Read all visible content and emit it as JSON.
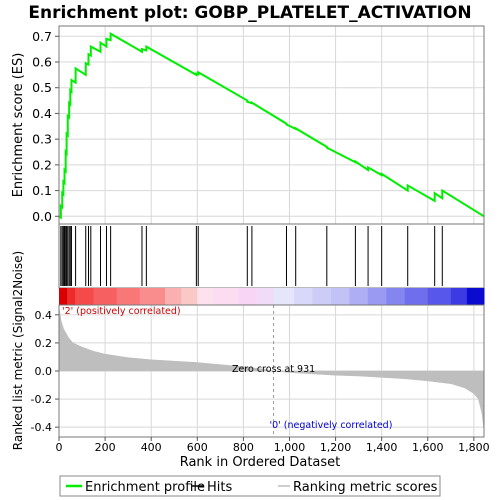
{
  "chart_data": {
    "type": "line",
    "title": "Enrichment plot: GOBP_PLATELET_ACTIVATION",
    "xlabel": "Rank in Ordered Dataset",
    "es_ylabel": "Enrichment score (ES)",
    "metric_ylabel": "Ranked list metric (Signal2Noise)",
    "xlim": [
      0,
      1844
    ],
    "es_ylim": [
      -0.03,
      0.74
    ],
    "metric_ylim": [
      -0.47,
      0.47
    ],
    "x_ticks": [
      "0",
      "200",
      "400",
      "600",
      "800",
      "1,000",
      "1,200",
      "1,400",
      "1,600",
      "1,800"
    ],
    "x_tick_values": [
      0,
      200,
      400,
      600,
      800,
      1000,
      1200,
      1400,
      1600,
      1800
    ],
    "es_ticks": [
      "0.0",
      "0.1",
      "0.2",
      "0.3",
      "0.4",
      "0.5",
      "0.6",
      "0.7"
    ],
    "es_tick_values": [
      0,
      0.1,
      0.2,
      0.3,
      0.4,
      0.5,
      0.6,
      0.7
    ],
    "metric_ticks": [
      "-0.4",
      "-0.2",
      "0.0",
      "0.2",
      "0.4"
    ],
    "metric_tick_values": [
      -0.4,
      -0.2,
      0,
      0.2,
      0.4
    ],
    "grid": true,
    "legend_position": "bottom",
    "hits": [
      8,
      14,
      19,
      24,
      29,
      33,
      38,
      44,
      49,
      54,
      72,
      116,
      128,
      138,
      180,
      206,
      224,
      360,
      379,
      596,
      604,
      817,
      837,
      987,
      1027,
      1162,
      1286,
      1341,
      1400,
      1513,
      1630,
      1663
    ],
    "enrichment_profile": {
      "x": [
        0,
        8,
        8,
        14,
        14,
        19,
        19,
        24,
        24,
        29,
        29,
        33,
        33,
        38,
        38,
        44,
        44,
        49,
        49,
        54,
        54,
        72,
        72,
        116,
        116,
        128,
        128,
        138,
        138,
        180,
        180,
        206,
        206,
        224,
        224,
        360,
        360,
        379,
        379,
        596,
        596,
        604,
        604,
        817,
        817,
        837,
        837,
        987,
        987,
        1027,
        1027,
        1162,
        1162,
        1286,
        1286,
        1341,
        1341,
        1400,
        1400,
        1513,
        1513,
        1630,
        1630,
        1663,
        1663,
        1844
      ],
      "y": [
        0.0,
        -0.005,
        0.04,
        0.035,
        0.09,
        0.085,
        0.135,
        0.13,
        0.18,
        0.175,
        0.25,
        0.245,
        0.32,
        0.315,
        0.39,
        0.385,
        0.44,
        0.435,
        0.49,
        0.485,
        0.53,
        0.52,
        0.575,
        0.55,
        0.595,
        0.59,
        0.63,
        0.625,
        0.66,
        0.64,
        0.675,
        0.66,
        0.69,
        0.685,
        0.71,
        0.64,
        0.65,
        0.645,
        0.66,
        0.55,
        0.555,
        0.552,
        0.56,
        0.45,
        0.445,
        0.44,
        0.442,
        0.36,
        0.357,
        0.34,
        0.342,
        0.27,
        0.267,
        0.21,
        0.213,
        0.18,
        0.19,
        0.16,
        0.165,
        0.1,
        0.12,
        0.06,
        0.09,
        0.07,
        0.1,
        0.0
      ]
    },
    "metric_curve": {
      "x": [
        0,
        10,
        20,
        40,
        60,
        100,
        150,
        200,
        300,
        400,
        500,
        600,
        700,
        800,
        900,
        931,
        1000,
        1100,
        1200,
        1300,
        1400,
        1500,
        1600,
        1700,
        1760,
        1800,
        1820,
        1835,
        1844
      ],
      "y": [
        0.45,
        0.35,
        0.3,
        0.24,
        0.2,
        0.17,
        0.14,
        0.12,
        0.095,
        0.08,
        0.07,
        0.06,
        0.045,
        0.03,
        0.01,
        0.0,
        -0.01,
        -0.02,
        -0.03,
        -0.035,
        -0.045,
        -0.055,
        -0.07,
        -0.09,
        -0.12,
        -0.16,
        -0.2,
        -0.3,
        -0.42
      ]
    },
    "zero_cross": 931,
    "zero_cross_label": "Zero cross at 931",
    "positive_label": "'2' (positively correlated)",
    "negative_label": "'0' (negatively correlated)",
    "colors": {
      "profile": "#00ee00",
      "hits": "#000000",
      "metric_fill": "#bebebe",
      "grid": "#d8d8d8",
      "positive_label": "#cc0000",
      "negative_label": "#0000cc"
    },
    "colorbar": {
      "x": [
        0,
        35,
        70,
        150,
        250,
        350,
        460,
        530,
        600,
        670,
        780,
        860,
        931,
        1020,
        1100,
        1180,
        1260,
        1340,
        1420,
        1500,
        1600,
        1700,
        1770,
        1844
      ],
      "colors": [
        "#d80000",
        "#ee2a2a",
        "#f54a4a",
        "#f76060",
        "#f87878",
        "#f98c8c",
        "#fab0b0",
        "#fbc8c8",
        "#fde2ee",
        "#fbdcf0",
        "#f8d4f5",
        "#f0dcf8",
        "#e6e6fa",
        "#d8d8f8",
        "#ccccf6",
        "#c2c2f6",
        "#aeaef4",
        "#9a9af2",
        "#8585f0",
        "#6f6fee",
        "#5757ea",
        "#3b3be4",
        "#0b0bd0"
      ]
    }
  },
  "legend": {
    "items": [
      {
        "label": "Enrichment profile",
        "color": "#00ee00",
        "kind": "line"
      },
      {
        "label": "Hits",
        "color": "#000000",
        "kind": "line"
      },
      {
        "label": "Ranking metric scores",
        "color": "#bebebe",
        "kind": "line"
      }
    ]
  }
}
